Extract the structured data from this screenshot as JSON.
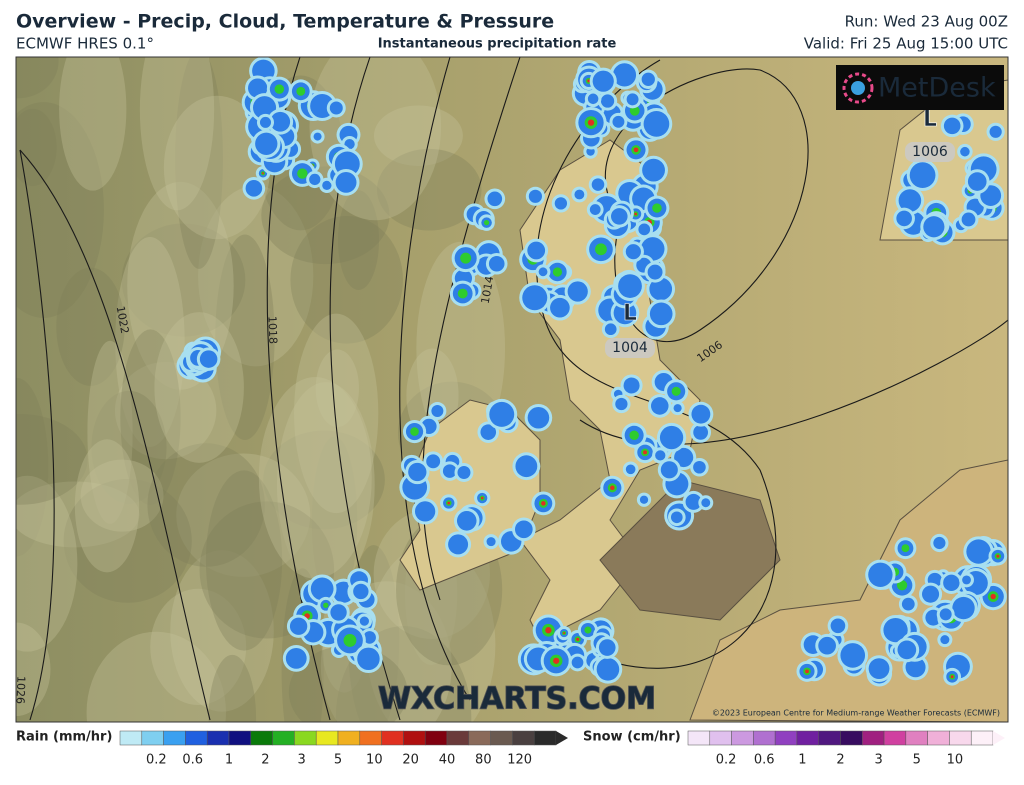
{
  "header": {
    "title": "Overview - Precip, Cloud, Temperature & Pressure",
    "model": "ECMWF HRES 0.1°",
    "product": "Instantaneous precipitation rate",
    "run": "Run: Wed 23 Aug 00Z",
    "valid": "Valid: Fri 25 Aug 15:00 UTC"
  },
  "map": {
    "logo": "MetDesk",
    "watermark": "WXCHARTS.COM",
    "copyright": "©2023 European Centre for Medium-range Weather Forecasts (ECMWF)",
    "isobar_labels": [
      "1022",
      "1018",
      "1026",
      "1014",
      "1006"
    ],
    "lows": [
      {
        "symbol": "L",
        "pressure": "1004"
      },
      {
        "symbol": "L",
        "pressure": "1006"
      }
    ]
  },
  "legend": {
    "rain_label": "Rain (mm/hr)",
    "rain_ticks": [
      "0.2",
      "0.6",
      "1",
      "2",
      "3",
      "5",
      "10",
      "20",
      "40",
      "80",
      "120"
    ],
    "snow_label": "Snow (cm/hr)",
    "snow_ticks": [
      "0.2",
      "0.6",
      "1",
      "2",
      "3",
      "5",
      "10"
    ]
  }
}
